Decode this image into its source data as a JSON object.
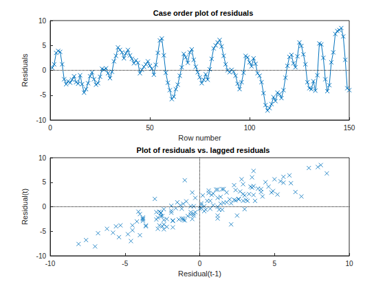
{
  "chart_data": [
    {
      "type": "line",
      "title": "Case order plot of residuals",
      "xlabel": "Row number",
      "ylabel": "Residuals",
      "x": [
        1,
        2,
        3,
        4,
        5,
        6,
        7,
        8,
        9,
        10,
        11,
        12,
        13,
        14,
        15,
        16,
        17,
        18,
        19,
        20,
        21,
        22,
        23,
        24,
        25,
        26,
        27,
        28,
        29,
        30,
        31,
        32,
        33,
        34,
        35,
        36,
        37,
        38,
        39,
        40,
        41,
        42,
        43,
        44,
        45,
        46,
        47,
        48,
        49,
        50,
        51,
        52,
        53,
        54,
        55,
        56,
        57,
        58,
        59,
        60,
        61,
        62,
        63,
        64,
        65,
        66,
        67,
        68,
        69,
        70,
        71,
        72,
        73,
        74,
        75,
        76,
        77,
        78,
        79,
        80,
        81,
        82,
        83,
        84,
        85,
        86,
        87,
        88,
        89,
        90,
        91,
        92,
        93,
        94,
        95,
        96,
        97,
        98,
        99,
        100,
        101,
        102,
        103,
        104,
        105,
        106,
        107,
        108,
        109,
        110,
        111,
        112,
        113,
        114,
        115,
        116,
        117,
        118,
        119,
        120,
        121,
        122,
        123,
        124,
        125,
        126,
        127,
        128,
        129,
        130,
        131,
        132,
        133,
        134,
        135,
        136,
        137,
        138,
        139,
        140,
        141,
        142,
        143,
        144,
        145,
        146,
        147,
        148,
        149,
        150
      ],
      "values": [
        0.5,
        1.2,
        3.5,
        3.9,
        3.7,
        1.2,
        -1.8,
        -2.8,
        -2.2,
        -2.5,
        -1.9,
        -1.2,
        -2.4,
        -2.7,
        -1.0,
        -2.8,
        -4.5,
        -3.8,
        -2.6,
        -1.2,
        -0.4,
        -1.8,
        -2.9,
        -2.6,
        -1.3,
        0.3,
        0.1,
        0.4,
        -0.6,
        -1.6,
        -0.3,
        1.8,
        2.9,
        4.6,
        4.1,
        3.6,
        2.4,
        3.4,
        4.1,
        3.0,
        2.3,
        1.4,
        2.0,
        1.5,
        -0.6,
        0.1,
        0.7,
        1.2,
        1.8,
        0.9,
        0.3,
        -0.9,
        1.1,
        3.5,
        6.0,
        6.4,
        3.0,
        -0.5,
        -2.5,
        -4.0,
        -5.8,
        -5.3,
        -3.8,
        -2.9,
        -1.1,
        0.6,
        3.3,
        2.6,
        1.5,
        3.6,
        4.2,
        2.1,
        0.7,
        -0.4,
        -1.4,
        -2.6,
        -1.9,
        -0.8,
        -1.9,
        0.2,
        2.3,
        4.4,
        5.0,
        5.6,
        6.1,
        4.8,
        2.9,
        1.2,
        0.0,
        -0.4,
        0.1,
        -0.3,
        -1.1,
        -2.7,
        -3.8,
        -2.4,
        -0.5,
        2.9,
        2.6,
        1.6,
        0.8,
        2.4,
        1.3,
        -0.6,
        -1.1,
        -2.4,
        -4.6,
        -7.0,
        -8.1,
        -7.6,
        -6.8,
        -5.4,
        -6.2,
        -4.5,
        -4.8,
        -5.6,
        -4.0,
        -1.5,
        0.9,
        2.7,
        3.1,
        1.4,
        0.6,
        2.8,
        5.6,
        4.9,
        3.2,
        1.2,
        -2.4,
        -3.6,
        -3.8,
        -2.2,
        -4.1,
        -1.0,
        5.4,
        5.2,
        2.5,
        -1.8,
        -4.2,
        -3.0,
        1.6,
        3.6,
        7.3,
        7.9,
        8.1,
        8.5,
        6.8,
        2.1,
        -3.6,
        -4.0
      ],
      "color": "#0072bd",
      "marker": "x",
      "line_style": "solid",
      "xlim": [
        0,
        150
      ],
      "xticks": [
        0,
        50,
        100,
        150
      ],
      "ylim": [
        -10,
        10
      ],
      "yticks": [
        -10,
        -5,
        0,
        5,
        10
      ],
      "hline": 0
    },
    {
      "type": "scatter",
      "title": "Plot of residuals vs. lagged residuals",
      "xlabel": "Residual(t-1)",
      "ylabel": "Residual(t)",
      "x": [
        0.5,
        1.2,
        3.5,
        3.9,
        3.7,
        1.2,
        -1.8,
        -2.8,
        -2.2,
        -2.5,
        -1.9,
        -1.2,
        -2.4,
        -2.7,
        -1.0,
        -2.8,
        -4.5,
        -3.8,
        -2.6,
        -1.2,
        -0.4,
        -1.8,
        -2.9,
        -2.6,
        -1.3,
        0.3,
        0.1,
        0.4,
        -0.6,
        -1.6,
        -0.3,
        1.8,
        2.9,
        4.6,
        4.1,
        3.6,
        2.4,
        3.4,
        4.1,
        3.0,
        2.3,
        1.4,
        2.0,
        1.5,
        -0.6,
        0.1,
        0.7,
        1.2,
        1.8,
        0.9,
        0.3,
        -0.9,
        1.1,
        3.5,
        6.0,
        6.4,
        3.0,
        -0.5,
        -2.5,
        -4.0,
        -5.8,
        -5.3,
        -3.8,
        -2.9,
        -1.1,
        0.6,
        3.3,
        2.6,
        1.5,
        3.6,
        4.2,
        2.1,
        0.7,
        -0.4,
        -1.4,
        -2.6,
        -1.9,
        -0.8,
        -1.9,
        0.2,
        2.3,
        4.4,
        5.0,
        5.6,
        6.1,
        4.8,
        2.9,
        1.2,
        0.0,
        -0.4,
        0.1,
        -0.3,
        -1.1,
        -2.7,
        -3.8,
        -2.4,
        -0.5,
        2.9,
        2.6,
        1.6,
        0.8,
        2.4,
        1.3,
        -0.6,
        -1.1,
        -2.4,
        -4.6,
        -7.0,
        -8.1,
        -7.6,
        -6.8,
        -5.4,
        -6.2,
        -4.5,
        -4.8,
        -5.6,
        -4.0,
        -1.5,
        0.9,
        2.7,
        3.1,
        1.4,
        0.6,
        2.8,
        5.6,
        4.9,
        3.2,
        1.2,
        -2.4,
        -3.6,
        -3.8,
        -2.2,
        -4.1,
        -1.0,
        5.4,
        5.2,
        2.5,
        -1.8,
        -4.2,
        -3.0,
        1.6,
        3.6,
        7.3,
        7.9,
        8.1,
        8.5,
        6.8,
        2.1,
        -3.6
      ],
      "values": [
        1.2,
        3.5,
        3.9,
        3.7,
        1.2,
        -1.8,
        -2.8,
        -2.2,
        -2.5,
        -1.9,
        -1.2,
        -2.4,
        -2.7,
        -1.0,
        -2.8,
        -4.5,
        -3.8,
        -2.6,
        -1.2,
        -0.4,
        -1.8,
        -2.9,
        -2.6,
        -1.3,
        0.3,
        0.1,
        0.4,
        -0.6,
        -1.6,
        -0.3,
        1.8,
        2.9,
        4.6,
        4.1,
        3.6,
        2.4,
        3.4,
        4.1,
        3.0,
        2.3,
        1.4,
        2.0,
        1.5,
        -0.6,
        0.1,
        0.7,
        1.2,
        1.8,
        0.9,
        0.3,
        -0.9,
        1.1,
        3.5,
        6.0,
        6.4,
        3.0,
        -0.5,
        -2.5,
        -4.0,
        -5.8,
        -5.3,
        -3.8,
        -2.9,
        -1.1,
        0.6,
        3.3,
        2.6,
        1.5,
        3.6,
        4.2,
        2.1,
        0.7,
        -0.4,
        -1.4,
        -2.6,
        -1.9,
        -0.8,
        -1.9,
        0.2,
        2.3,
        4.4,
        5.0,
        5.6,
        6.1,
        4.8,
        2.9,
        1.2,
        0.0,
        -0.4,
        0.1,
        -0.3,
        -1.1,
        -2.7,
        -3.8,
        -2.4,
        -0.5,
        2.9,
        2.6,
        1.6,
        0.8,
        2.4,
        1.3,
        -0.6,
        -1.1,
        -2.4,
        -4.6,
        -7.0,
        -8.1,
        -7.6,
        -6.8,
        -5.4,
        -6.2,
        -4.5,
        -4.8,
        -5.6,
        -4.0,
        -1.5,
        0.9,
        2.7,
        3.1,
        1.4,
        0.6,
        2.8,
        5.6,
        4.9,
        3.2,
        1.2,
        -2.4,
        -3.6,
        -3.8,
        -2.2,
        -4.1,
        -1.0,
        5.4,
        5.2,
        2.5,
        -1.8,
        -4.2,
        -3.0,
        1.6,
        3.6,
        7.3,
        7.9,
        8.1,
        8.5,
        6.8,
        2.1,
        -3.6,
        -4.0
      ],
      "color": "#0072bd",
      "marker": "x",
      "xlim": [
        -10,
        10
      ],
      "xticks": [
        -10,
        -5,
        0,
        5,
        10
      ],
      "ylim": [
        -10,
        10
      ],
      "yticks": [
        -10,
        -5,
        0,
        5,
        10
      ],
      "hline": 0,
      "vline": 0
    }
  ]
}
